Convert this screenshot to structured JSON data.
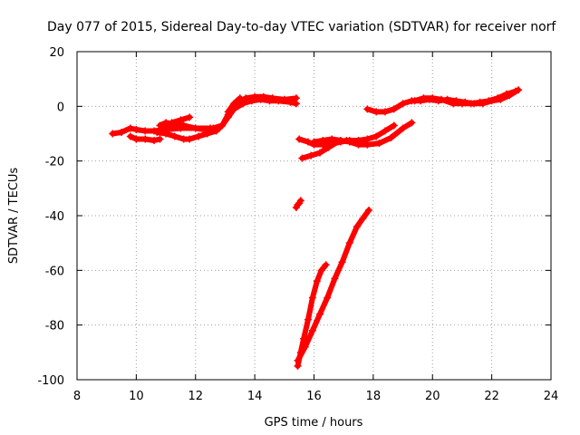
{
  "chart_data": {
    "type": "scatter",
    "title": "Day 077 of 2015, Sidereal Day-to-day VTEC variation (SDTVAR) for receiver norf",
    "xlabel": "GPS time / hours",
    "ylabel": "SDTVAR / TECUs",
    "xlim": [
      8,
      24
    ],
    "ylim": [
      -100,
      20
    ],
    "xticks": [
      8,
      10,
      12,
      14,
      16,
      18,
      20,
      22,
      24
    ],
    "yticks": [
      -100,
      -80,
      -60,
      -40,
      -20,
      0,
      20
    ],
    "grid": true,
    "color": "#ff0000",
    "series": [
      {
        "name": "s1",
        "x": [
          9.2,
          9.5,
          9.8,
          10.0,
          10.3,
          10.6,
          11.0,
          11.5,
          12.0,
          12.5,
          12.8
        ],
        "y": [
          -10,
          -9.5,
          -8,
          -8.5,
          -9,
          -9,
          -8.5,
          -8,
          -8,
          -8,
          -8
        ]
      },
      {
        "name": "s2",
        "x": [
          9.8,
          10.0,
          10.3,
          10.6,
          10.8
        ],
        "y": [
          -11,
          -12,
          -12,
          -12.5,
          -12
        ]
      },
      {
        "name": "s3",
        "x": [
          10.8,
          11.0,
          11.3,
          11.6,
          12.0,
          12.3,
          12.6,
          12.9,
          13.1,
          13.3,
          13.6,
          13.9,
          14.2,
          14.5,
          14.8,
          15.2,
          15.4
        ],
        "y": [
          -7,
          -6,
          -6.5,
          -7,
          -8,
          -8.5,
          -8,
          -7,
          -4,
          -1,
          1,
          2,
          2.5,
          2,
          2,
          1.5,
          1
        ]
      },
      {
        "name": "s4",
        "x": [
          10.7,
          11.0,
          11.3,
          11.6,
          11.8,
          12.1,
          12.4,
          12.7,
          12.9,
          13.1,
          13.3,
          13.5,
          13.7,
          14.0,
          14.3,
          14.6,
          15.0,
          15.4
        ],
        "y": [
          -9.5,
          -10,
          -11,
          -12,
          -12,
          -11,
          -10,
          -9,
          -7,
          -3,
          0,
          2,
          3,
          3.5,
          3.5,
          3,
          2.5,
          3
        ]
      },
      {
        "name": "s5",
        "x": [
          11.0,
          11.2,
          11.5,
          11.8
        ],
        "y": [
          -7.5,
          -6,
          -5,
          -4
        ]
      },
      {
        "name": "s6",
        "x": [
          13.1,
          13.3,
          13.5
        ],
        "y": [
          -2,
          1,
          3
        ]
      },
      {
        "name": "s7",
        "x": [
          15.5,
          15.8,
          16.0,
          16.3,
          16.6,
          16.9,
          17.2,
          17.5,
          17.8,
          18.1,
          18.4,
          18.7
        ],
        "y": [
          -12,
          -13,
          -14,
          -14,
          -13.5,
          -13,
          -12.5,
          -12.5,
          -12,
          -11,
          -9,
          -7
        ]
      },
      {
        "name": "s8",
        "x": [
          15.6,
          15.9,
          16.2,
          16.5,
          16.8,
          17.1,
          17.4,
          17.8,
          18.2,
          18.6,
          19.0,
          19.3
        ],
        "y": [
          -19,
          -18,
          -17,
          -15,
          -13,
          -12.5,
          -13,
          -14,
          -13.5,
          -11.5,
          -8,
          -6
        ]
      },
      {
        "name": "s9",
        "x": [
          16.0,
          16.3,
          16.6,
          16.9,
          17.2,
          17.5,
          17.8
        ],
        "y": [
          -13,
          -12.5,
          -12,
          -12.5,
          -13,
          -14,
          -14
        ]
      },
      {
        "name": "s10",
        "x": [
          15.4,
          15.45,
          15.5,
          15.55
        ],
        "y": [
          -37,
          -36,
          -35.5,
          -34.5
        ]
      },
      {
        "name": "s11",
        "x": [
          15.45,
          15.55,
          15.65,
          15.8,
          15.95,
          16.1,
          16.25,
          16.4
        ],
        "y": [
          -95,
          -90,
          -85,
          -78,
          -70,
          -64,
          -60,
          -58
        ]
      },
      {
        "name": "s12",
        "x": [
          15.45,
          15.7,
          15.95,
          16.2,
          16.45,
          16.7,
          16.95,
          17.2,
          17.45,
          17.65,
          17.85
        ],
        "y": [
          -93,
          -88,
          -82,
          -76,
          -70,
          -63,
          -57,
          -50,
          -44,
          -41,
          -38
        ]
      },
      {
        "name": "s13",
        "x": [
          17.8,
          18.1,
          18.4,
          18.7,
          19.0,
          19.3,
          19.6,
          19.9,
          20.2,
          20.5,
          20.8,
          21.1,
          21.4,
          21.7,
          22.0,
          22.3,
          22.6,
          22.9
        ],
        "y": [
          -1,
          -2,
          -2,
          -1,
          1,
          2,
          2,
          2.5,
          2,
          2.5,
          2,
          1.5,
          1,
          1,
          2,
          2.5,
          4,
          6
        ]
      },
      {
        "name": "s14",
        "x": [
          19.4,
          19.7,
          20.0,
          20.3,
          20.7,
          21.0,
          21.3,
          21.6,
          21.9,
          22.2,
          22.5,
          22.8
        ],
        "y": [
          2,
          3,
          3,
          2.5,
          1,
          1,
          1,
          1.5,
          2,
          3,
          4.5,
          5.5
        ]
      }
    ]
  }
}
